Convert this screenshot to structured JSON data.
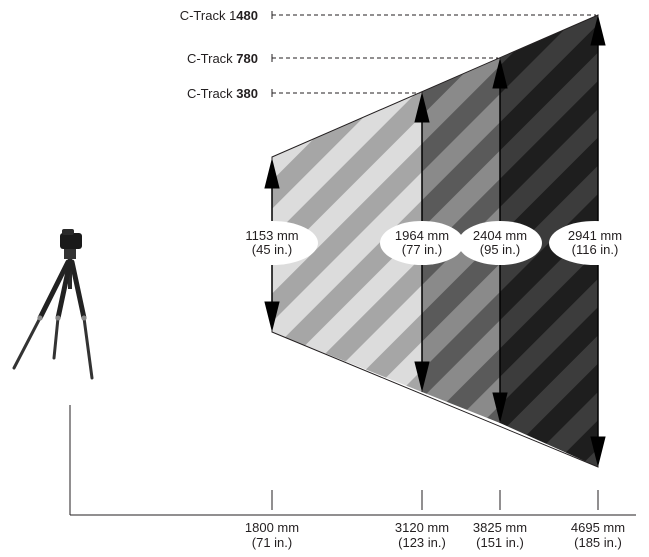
{
  "tracks": [
    {
      "prefix": "C-Track ",
      "model": "380"
    },
    {
      "prefix": "C-Track ",
      "model": "780"
    },
    {
      "prefix": "C-Track 1",
      "model": "480"
    }
  ],
  "heights": [
    {
      "mm": "1153 mm",
      "in": "(45 in.)"
    },
    {
      "mm": "1964 mm",
      "in": "(77 in.)"
    },
    {
      "mm": "2404 mm",
      "in": "(95 in.)"
    },
    {
      "mm": "2941 mm",
      "in": "(116 in.)"
    }
  ],
  "distances": [
    {
      "mm": "1800 mm",
      "in": "(71 in.)"
    },
    {
      "mm": "3120 mm",
      "in": "(123 in.)"
    },
    {
      "mm": "3825 mm",
      "in": "(151 in.)"
    },
    {
      "mm": "4695 mm",
      "in": "(185 in.)"
    }
  ],
  "colors": {
    "zone1_base": "#dcdcdc",
    "zone1_stripe": "#a6a6a6",
    "zone2_base": "#8a8a8a",
    "zone2_stripe": "#5a5a5a",
    "zone3_base": "#5e5e5e",
    "zone3_stripe": "#3a3a3a",
    "zone4_base": "#3c3c3c",
    "zone4_stripe": "#1e1e1e",
    "text": "#231f20"
  },
  "icons": [
    "camera-tripod-icon"
  ]
}
